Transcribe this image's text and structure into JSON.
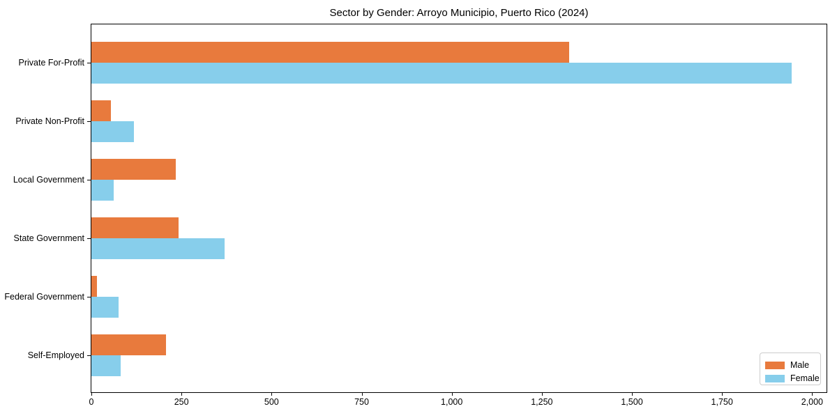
{
  "chart_data": {
    "type": "bar",
    "orientation": "horizontal",
    "title": "Sector by Gender: Arroyo Municipio, Puerto Rico (2024)",
    "xlabel": "",
    "ylabel": "",
    "categories": [
      "Private For-Profit",
      "Private Non-Profit",
      "Local Government",
      "State Government",
      "Federal Government",
      "Self-Employed"
    ],
    "series": [
      {
        "name": "Male",
        "color": "#e87a3d",
        "values": [
          1325,
          55,
          235,
          242,
          15,
          207
        ]
      },
      {
        "name": "Female",
        "color": "#87ceeb",
        "values": [
          1943,
          118,
          62,
          369,
          76,
          82
        ]
      }
    ],
    "xlim": [
      0,
      2040
    ],
    "x_ticks": [
      0,
      250,
      500,
      750,
      1000,
      1250,
      1500,
      1750,
      2000
    ],
    "x_tick_labels": [
      "0",
      "250",
      "500",
      "750",
      "1,000",
      "1,250",
      "1,500",
      "1,750",
      "2,000"
    ],
    "grid": false,
    "legend": {
      "position": "lower right",
      "border_color": "#cccccc"
    }
  }
}
